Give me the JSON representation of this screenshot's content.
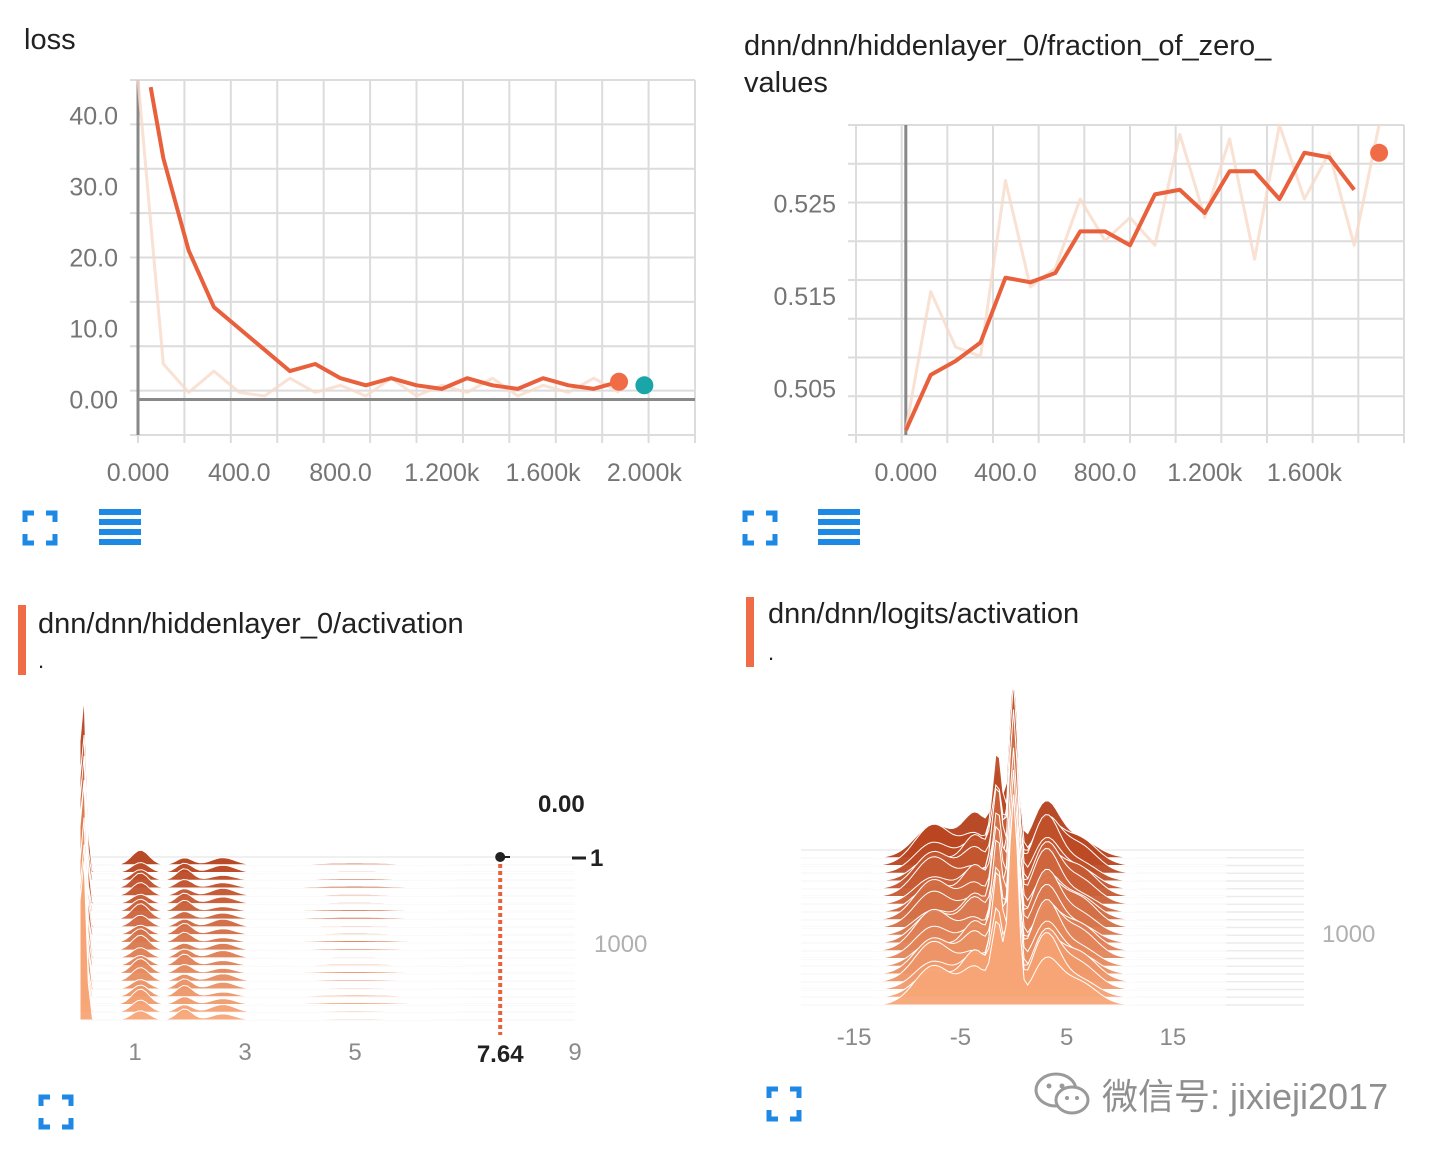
{
  "colors": {
    "accent": "#ef6c47",
    "smoothed_line": "#e8603c",
    "raw_line": "#f7d9c9",
    "teal_marker": "#1aa5a8",
    "button_blue": "#1e88e5",
    "grid": "#dcdcdc"
  },
  "icons": {
    "expand": "expand-icon",
    "data_toggle": "data-table-icon"
  },
  "cards": {
    "loss": {
      "title": "loss"
    },
    "fraction": {
      "title_line1": "dnn/dnn/hiddenlayer_0/fraction_of_zero_",
      "title_line2": "values"
    },
    "hidden_hist": {
      "title": "dnn/dnn/hiddenlayer_0/activation",
      "subtitle": ".",
      "hover_value": "0.00",
      "hover_step": "1",
      "hover_x": "7.64"
    },
    "logits_hist": {
      "title": "dnn/dnn/logits/activation",
      "subtitle": "."
    }
  },
  "watermark": {
    "text": "微信号: jixieji2017"
  },
  "chart_data": [
    {
      "id": "loss",
      "type": "line",
      "title": "loss",
      "xlim": [
        0,
        2200
      ],
      "ylim": [
        -5,
        45
      ],
      "xticks": [
        0,
        400,
        800,
        1200,
        1600,
        2000
      ],
      "xtick_labels": [
        "0.000",
        "400.0",
        "800.0",
        "1.200k",
        "1.600k",
        "2.000k"
      ],
      "yticks": [
        0,
        10,
        20,
        30,
        40
      ],
      "ytick_labels": [
        "0.00",
        "10.0",
        "20.0",
        "30.0",
        "40.0"
      ],
      "grid": true,
      "series": [
        {
          "role": "raw",
          "x": [
            0,
            100,
            200,
            300,
            400,
            500,
            600,
            700,
            800,
            900,
            1000,
            1100,
            1200,
            1300,
            1400,
            1500,
            1600,
            1700,
            1800,
            1900
          ],
          "y": [
            45,
            5,
            1,
            4,
            1,
            0.5,
            3,
            1,
            2,
            0.5,
            3,
            0.5,
            2,
            1,
            3,
            0.5,
            2,
            1,
            3,
            1
          ]
        },
        {
          "role": "smoothed",
          "x": [
            50,
            100,
            200,
            300,
            400,
            500,
            600,
            700,
            800,
            900,
            1000,
            1100,
            1200,
            1300,
            1400,
            1500,
            1600,
            1700,
            1800,
            1900
          ],
          "y": [
            44,
            34,
            21,
            13,
            10,
            7,
            4,
            5,
            3,
            2,
            3,
            2,
            1.5,
            3,
            2,
            1.5,
            3,
            2,
            1.5,
            2.5
          ]
        }
      ],
      "markers": [
        {
          "x": 1900,
          "y": 2.5,
          "color": "#ef6c47"
        },
        {
          "x": 2000,
          "y": 2,
          "color": "#1aa5a8"
        }
      ]
    },
    {
      "id": "fraction",
      "type": "line",
      "title": "dnn/dnn/hiddenlayer_0/fraction_of_zero_values",
      "xlim": [
        -200,
        2000
      ],
      "ylim": [
        0.5,
        0.5335
      ],
      "xticks": [
        0,
        400,
        800,
        1200,
        1600
      ],
      "xtick_labels": [
        "0.000",
        "400.0",
        "800.0",
        "1.200k",
        "1.600k"
      ],
      "yticks": [
        0.505,
        0.515,
        0.525
      ],
      "ytick_labels": [
        "0.505",
        "0.515",
        "0.525"
      ],
      "grid": true,
      "series": [
        {
          "role": "raw",
          "x": [
            0,
            100,
            200,
            300,
            400,
            500,
            600,
            700,
            800,
            900,
            1000,
            1100,
            1200,
            1300,
            1400,
            1500,
            1600,
            1700,
            1800,
            1900
          ],
          "y": [
            0.5005,
            0.5155,
            0.5095,
            0.5085,
            0.5275,
            0.516,
            0.518,
            0.5255,
            0.521,
            0.5235,
            0.5205,
            0.5325,
            0.5235,
            0.532,
            0.519,
            0.5335,
            0.5255,
            0.5305,
            0.5205,
            0.5335
          ]
        },
        {
          "role": "smoothed",
          "x": [
            0,
            100,
            200,
            300,
            400,
            500,
            600,
            700,
            800,
            900,
            1000,
            1100,
            1200,
            1300,
            1400,
            1500,
            1600,
            1700,
            1800
          ],
          "y": [
            0.5005,
            0.5065,
            0.508,
            0.51,
            0.517,
            0.5165,
            0.5175,
            0.522,
            0.522,
            0.5205,
            0.526,
            0.5265,
            0.524,
            0.5285,
            0.5285,
            0.5255,
            0.5305,
            0.53,
            0.5265
          ]
        }
      ],
      "markers": [
        {
          "x": 1900,
          "y": 0.5305,
          "color": "#ef6c47"
        }
      ]
    },
    {
      "id": "hidden_hist",
      "type": "area",
      "subtype": "offset-histogram",
      "title": "dnn/dnn/hiddenlayer_0/activation",
      "xlim": [
        0,
        9
      ],
      "xticks": [
        1,
        3,
        5,
        9
      ],
      "xtick_labels": [
        "1",
        "3",
        "5",
        "9"
      ],
      "step_tick_labels": [
        "1",
        "1000"
      ],
      "num_slices": 21,
      "peaks": [
        {
          "x": 0.05,
          "h": 1.0,
          "w": 0.08
        },
        {
          "x": 1.1,
          "h": 0.08,
          "w": 0.22
        },
        {
          "x": 1.9,
          "h": 0.06,
          "w": 0.2
        },
        {
          "x": 2.6,
          "h": 0.04,
          "w": 0.3
        },
        {
          "x": 5.0,
          "h": 0.01,
          "w": 1.2
        }
      ],
      "hover": {
        "value": 0.0,
        "step": 1,
        "x": 7.64
      }
    },
    {
      "id": "logits_hist",
      "type": "area",
      "subtype": "offset-histogram",
      "title": "dnn/dnn/logits/activation",
      "xlim": [
        -20,
        20
      ],
      "xticks": [
        -15,
        -5,
        5,
        15
      ],
      "xtick_labels": [
        "-15",
        "-5",
        "5",
        "15"
      ],
      "step_tick_labels": [
        "1000"
      ],
      "num_slices": 20,
      "peaks": [
        {
          "x": -7.5,
          "h": 0.2,
          "w": 2.5
        },
        {
          "x": -3.5,
          "h": 0.22,
          "w": 1.8
        },
        {
          "x": -1.5,
          "h": 0.55,
          "w": 0.7
        },
        {
          "x": 0,
          "h": 1.0,
          "w": 0.6
        },
        {
          "x": 3,
          "h": 0.3,
          "w": 1.8
        },
        {
          "x": 6,
          "h": 0.15,
          "w": 2.5
        }
      ]
    }
  ]
}
